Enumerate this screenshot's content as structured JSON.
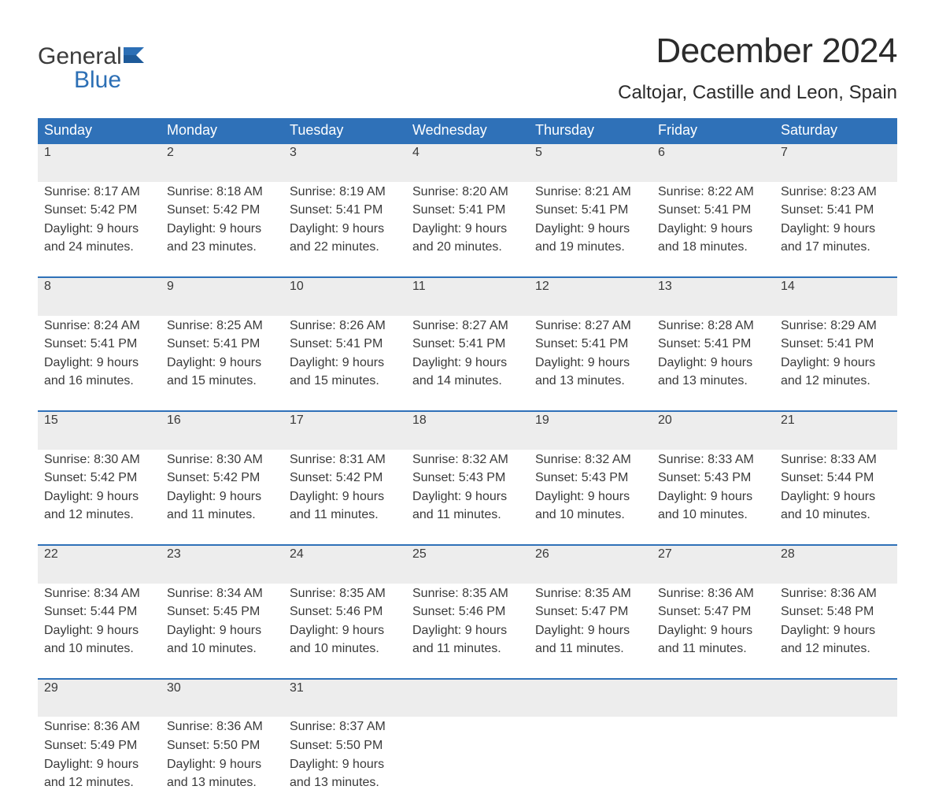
{
  "brand": {
    "word1": "General",
    "word2": "Blue",
    "word1_color": "#3c3c3c",
    "word2_color": "#2c6fb5"
  },
  "title": "December 2024",
  "location": "Caltojar, Castille and Leon, Spain",
  "colors": {
    "header_bg": "#2f71b8",
    "header_text": "#ffffff",
    "daynum_bg": "#ededed",
    "daynum_border": "#2f71b8",
    "body_text": "#3a3a3a",
    "daynum_text": "#6e6e6e",
    "page_bg": "#ffffff"
  },
  "fonts": {
    "title_size": 44,
    "location_size": 24,
    "header_size": 18,
    "cell_size": 16
  },
  "day_headers": [
    "Sunday",
    "Monday",
    "Tuesday",
    "Wednesday",
    "Thursday",
    "Friday",
    "Saturday"
  ],
  "weeks": [
    [
      {
        "n": "1",
        "sunrise": "Sunrise: 8:17 AM",
        "sunset": "Sunset: 5:42 PM",
        "d1": "Daylight: 9 hours",
        "d2": "and 24 minutes."
      },
      {
        "n": "2",
        "sunrise": "Sunrise: 8:18 AM",
        "sunset": "Sunset: 5:42 PM",
        "d1": "Daylight: 9 hours",
        "d2": "and 23 minutes."
      },
      {
        "n": "3",
        "sunrise": "Sunrise: 8:19 AM",
        "sunset": "Sunset: 5:41 PM",
        "d1": "Daylight: 9 hours",
        "d2": "and 22 minutes."
      },
      {
        "n": "4",
        "sunrise": "Sunrise: 8:20 AM",
        "sunset": "Sunset: 5:41 PM",
        "d1": "Daylight: 9 hours",
        "d2": "and 20 minutes."
      },
      {
        "n": "5",
        "sunrise": "Sunrise: 8:21 AM",
        "sunset": "Sunset: 5:41 PM",
        "d1": "Daylight: 9 hours",
        "d2": "and 19 minutes."
      },
      {
        "n": "6",
        "sunrise": "Sunrise: 8:22 AM",
        "sunset": "Sunset: 5:41 PM",
        "d1": "Daylight: 9 hours",
        "d2": "and 18 minutes."
      },
      {
        "n": "7",
        "sunrise": "Sunrise: 8:23 AM",
        "sunset": "Sunset: 5:41 PM",
        "d1": "Daylight: 9 hours",
        "d2": "and 17 minutes."
      }
    ],
    [
      {
        "n": "8",
        "sunrise": "Sunrise: 8:24 AM",
        "sunset": "Sunset: 5:41 PM",
        "d1": "Daylight: 9 hours",
        "d2": "and 16 minutes."
      },
      {
        "n": "9",
        "sunrise": "Sunrise: 8:25 AM",
        "sunset": "Sunset: 5:41 PM",
        "d1": "Daylight: 9 hours",
        "d2": "and 15 minutes."
      },
      {
        "n": "10",
        "sunrise": "Sunrise: 8:26 AM",
        "sunset": "Sunset: 5:41 PM",
        "d1": "Daylight: 9 hours",
        "d2": "and 15 minutes."
      },
      {
        "n": "11",
        "sunrise": "Sunrise: 8:27 AM",
        "sunset": "Sunset: 5:41 PM",
        "d1": "Daylight: 9 hours",
        "d2": "and 14 minutes."
      },
      {
        "n": "12",
        "sunrise": "Sunrise: 8:27 AM",
        "sunset": "Sunset: 5:41 PM",
        "d1": "Daylight: 9 hours",
        "d2": "and 13 minutes."
      },
      {
        "n": "13",
        "sunrise": "Sunrise: 8:28 AM",
        "sunset": "Sunset: 5:41 PM",
        "d1": "Daylight: 9 hours",
        "d2": "and 13 minutes."
      },
      {
        "n": "14",
        "sunrise": "Sunrise: 8:29 AM",
        "sunset": "Sunset: 5:41 PM",
        "d1": "Daylight: 9 hours",
        "d2": "and 12 minutes."
      }
    ],
    [
      {
        "n": "15",
        "sunrise": "Sunrise: 8:30 AM",
        "sunset": "Sunset: 5:42 PM",
        "d1": "Daylight: 9 hours",
        "d2": "and 12 minutes."
      },
      {
        "n": "16",
        "sunrise": "Sunrise: 8:30 AM",
        "sunset": "Sunset: 5:42 PM",
        "d1": "Daylight: 9 hours",
        "d2": "and 11 minutes."
      },
      {
        "n": "17",
        "sunrise": "Sunrise: 8:31 AM",
        "sunset": "Sunset: 5:42 PM",
        "d1": "Daylight: 9 hours",
        "d2": "and 11 minutes."
      },
      {
        "n": "18",
        "sunrise": "Sunrise: 8:32 AM",
        "sunset": "Sunset: 5:43 PM",
        "d1": "Daylight: 9 hours",
        "d2": "and 11 minutes."
      },
      {
        "n": "19",
        "sunrise": "Sunrise: 8:32 AM",
        "sunset": "Sunset: 5:43 PM",
        "d1": "Daylight: 9 hours",
        "d2": "and 10 minutes."
      },
      {
        "n": "20",
        "sunrise": "Sunrise: 8:33 AM",
        "sunset": "Sunset: 5:43 PM",
        "d1": "Daylight: 9 hours",
        "d2": "and 10 minutes."
      },
      {
        "n": "21",
        "sunrise": "Sunrise: 8:33 AM",
        "sunset": "Sunset: 5:44 PM",
        "d1": "Daylight: 9 hours",
        "d2": "and 10 minutes."
      }
    ],
    [
      {
        "n": "22",
        "sunrise": "Sunrise: 8:34 AM",
        "sunset": "Sunset: 5:44 PM",
        "d1": "Daylight: 9 hours",
        "d2": "and 10 minutes."
      },
      {
        "n": "23",
        "sunrise": "Sunrise: 8:34 AM",
        "sunset": "Sunset: 5:45 PM",
        "d1": "Daylight: 9 hours",
        "d2": "and 10 minutes."
      },
      {
        "n": "24",
        "sunrise": "Sunrise: 8:35 AM",
        "sunset": "Sunset: 5:46 PM",
        "d1": "Daylight: 9 hours",
        "d2": "and 10 minutes."
      },
      {
        "n": "25",
        "sunrise": "Sunrise: 8:35 AM",
        "sunset": "Sunset: 5:46 PM",
        "d1": "Daylight: 9 hours",
        "d2": "and 11 minutes."
      },
      {
        "n": "26",
        "sunrise": "Sunrise: 8:35 AM",
        "sunset": "Sunset: 5:47 PM",
        "d1": "Daylight: 9 hours",
        "d2": "and 11 minutes."
      },
      {
        "n": "27",
        "sunrise": "Sunrise: 8:36 AM",
        "sunset": "Sunset: 5:47 PM",
        "d1": "Daylight: 9 hours",
        "d2": "and 11 minutes."
      },
      {
        "n": "28",
        "sunrise": "Sunrise: 8:36 AM",
        "sunset": "Sunset: 5:48 PM",
        "d1": "Daylight: 9 hours",
        "d2": "and 12 minutes."
      }
    ],
    [
      {
        "n": "29",
        "sunrise": "Sunrise: 8:36 AM",
        "sunset": "Sunset: 5:49 PM",
        "d1": "Daylight: 9 hours",
        "d2": "and 12 minutes."
      },
      {
        "n": "30",
        "sunrise": "Sunrise: 8:36 AM",
        "sunset": "Sunset: 5:50 PM",
        "d1": "Daylight: 9 hours",
        "d2": "and 13 minutes."
      },
      {
        "n": "31",
        "sunrise": "Sunrise: 8:37 AM",
        "sunset": "Sunset: 5:50 PM",
        "d1": "Daylight: 9 hours",
        "d2": "and 13 minutes."
      },
      null,
      null,
      null,
      null
    ]
  ]
}
